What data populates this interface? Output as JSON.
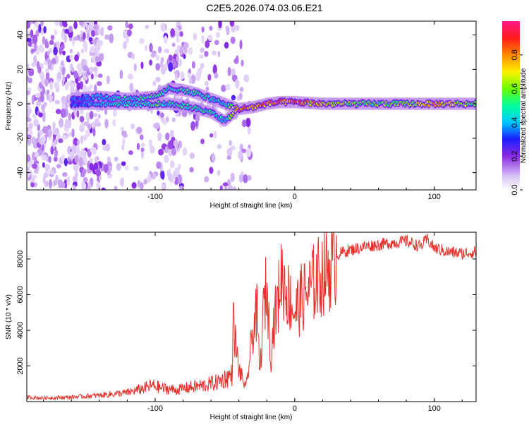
{
  "title": "C2E5.2026.074.03.06.E21",
  "colors": {
    "snr_line": "#e8302a",
    "axis": "#000000",
    "background": "#ffffff"
  },
  "chart_data": [
    {
      "type": "heatmap",
      "name": "spectrogram",
      "xlabel": "Height of straight line (km)",
      "ylabel": "Frequency (Hz)",
      "xlim": [
        -192,
        130
      ],
      "ylim": [
        -50,
        48
      ],
      "xticks": [
        -100,
        0,
        100
      ],
      "xtick_labels": [
        "-100",
        "0",
        "100"
      ],
      "yticks": [
        -40,
        -20,
        0,
        20,
        40
      ],
      "ytick_labels": [
        "-40",
        "-20",
        "0",
        "20",
        "40"
      ],
      "colorbar": {
        "label": "Normalized spectral amplitude",
        "range": [
          0,
          1
        ],
        "ticks": [
          0.0,
          0.2,
          0.4,
          0.6,
          0.8
        ],
        "tick_labels": [
          "0.0",
          "0.2",
          "0.4",
          "0.6",
          "0.8"
        ],
        "stops": [
          {
            "v": 0.0,
            "color": "#ffffff"
          },
          {
            "v": 0.08,
            "color": "#d9c2f5"
          },
          {
            "v": 0.2,
            "color": "#8a2be2"
          },
          {
            "v": 0.3,
            "color": "#1c1cff"
          },
          {
            "v": 0.4,
            "color": "#00c8ff"
          },
          {
            "v": 0.5,
            "color": "#00ff9a"
          },
          {
            "v": 0.6,
            "color": "#6aff00"
          },
          {
            "v": 0.7,
            "color": "#fff000"
          },
          {
            "v": 0.8,
            "color": "#ff8a00"
          },
          {
            "v": 0.9,
            "color": "#ff1a1a"
          },
          {
            "v": 1.0,
            "color": "#ff1a8c"
          }
        ]
      },
      "ridge": {
        "description": "dominant frequency track",
        "x": [
          -160,
          -140,
          -120,
          -100,
          -90,
          -80,
          -70,
          -60,
          -50,
          -40,
          -30,
          -20,
          -10,
          0,
          20,
          50,
          80,
          100,
          130
        ],
        "upper_y": [
          3,
          4,
          3,
          4,
          9,
          8,
          6,
          3,
          0,
          -3,
          -2,
          0,
          1,
          1,
          0,
          0,
          0,
          0,
          0
        ],
        "lower_y": [
          0,
          0,
          0,
          0,
          0,
          -1,
          -3,
          -5,
          -10,
          -3,
          -2,
          0,
          1,
          1,
          0,
          0,
          0,
          0,
          0
        ],
        "amplitude": [
          0.35,
          0.45,
          0.5,
          0.55,
          0.5,
          0.55,
          0.55,
          0.5,
          0.45,
          0.9,
          0.85,
          0.9,
          0.9,
          0.9,
          0.8,
          0.6,
          0.65,
          0.8,
          0.6
        ]
      }
    },
    {
      "type": "line",
      "name": "snr",
      "xlabel": "Height of straight line (km)",
      "ylabel": "SNR (10 * v/v)",
      "xlim": [
        -192,
        130
      ],
      "ylim": [
        0,
        9500
      ],
      "xticks": [
        -100,
        0,
        100
      ],
      "xtick_labels": [
        "-100",
        "0",
        "100"
      ],
      "yticks": [
        2000,
        4000,
        6000,
        8000
      ],
      "ytick_labels": [
        "2000",
        "4000",
        "6000",
        "8000"
      ],
      "x": [
        -192,
        -180,
        -160,
        -140,
        -120,
        -110,
        -102,
        -95,
        -85,
        -75,
        -65,
        -55,
        -50,
        -45,
        -44,
        -42,
        -40,
        -37,
        -35,
        -32,
        -30,
        -27,
        -25,
        -22,
        -20,
        -17,
        -15,
        -12,
        -10,
        -8,
        -5,
        -2,
        0,
        5,
        10,
        15,
        20,
        25,
        30,
        35,
        40,
        45,
        50,
        60,
        70,
        80,
        90,
        95,
        100,
        105,
        110,
        120,
        130
      ],
      "y": [
        250,
        200,
        250,
        350,
        500,
        700,
        900,
        750,
        650,
        800,
        900,
        1100,
        1300,
        1500,
        4500,
        3000,
        1800,
        1200,
        700,
        2500,
        4000,
        5000,
        1500,
        5500,
        6500,
        2500,
        4500,
        5500,
        7200,
        6800,
        6000,
        5500,
        5000,
        5800,
        6200,
        6800,
        7200,
        7600,
        8200,
        8400,
        8500,
        8600,
        8700,
        8800,
        8900,
        9000,
        8700,
        9100,
        8600,
        8500,
        8400,
        8300,
        8400
      ]
    }
  ]
}
